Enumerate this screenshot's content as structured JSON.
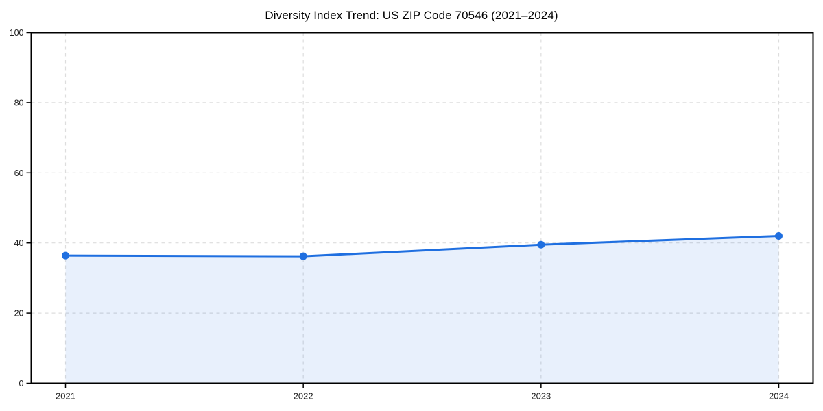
{
  "chart_data": {
    "type": "area",
    "title": "Diversity Index Trend: US ZIP Code 70546 (2021–2024)",
    "categories": [
      "2021",
      "2022",
      "2023",
      "2024"
    ],
    "values": [
      36.4,
      36.2,
      39.5,
      42.0
    ],
    "xlabel": "",
    "ylabel": "",
    "ylim": [
      0,
      100
    ],
    "yticks": [
      0,
      20,
      40,
      60,
      80,
      100
    ],
    "grid": true,
    "grid_style": "dashed",
    "legend_position": "none",
    "colors": {
      "line": "#1f6fe0",
      "fill": "#1f6fe0",
      "fill_opacity": 0.1,
      "grid": "#dddddd",
      "axis": "#000000",
      "tick_label": "#222222",
      "title": "#000000",
      "background": "#ffffff"
    }
  }
}
